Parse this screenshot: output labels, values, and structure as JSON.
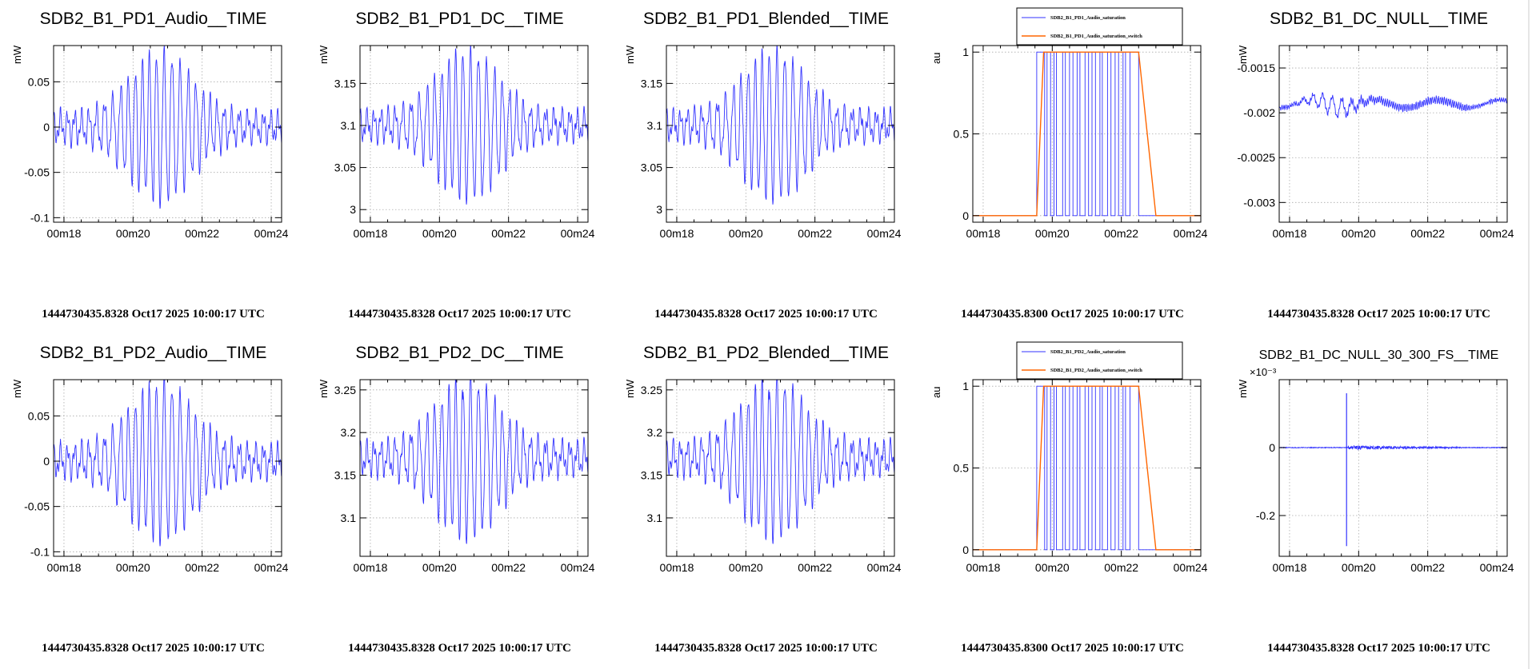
{
  "time_ticks": [
    "00m18",
    "00m20",
    "00m22",
    "00m24"
  ],
  "colors": {
    "trace": "#3333ff",
    "switch": "#ff6600",
    "grid": "#aaaaaa",
    "frame": "#000000"
  },
  "panels": [
    {
      "title": "SDB2_B1_PD1_Audio__TIME",
      "footer": "1444730435.8328 Oct17 2025 10:00:17 UTC",
      "chart_data": {
        "type": "line",
        "kind": "osc",
        "ylabel": "mW",
        "yrange": [
          -0.105,
          0.09
        ],
        "yticks": [
          {
            "v": 0.05,
            "label": "0.05"
          },
          {
            "v": 0,
            "label": "0"
          },
          {
            "v": -0.05,
            "label": "-0.05"
          },
          {
            "v": -0.1,
            "label": "-0.1"
          }
        ],
        "baseline": 0.0,
        "amp": 0.07,
        "seed": 3,
        "x_window_s": [
          17.7,
          24.3
        ]
      }
    },
    {
      "title": "SDB2_B1_PD1_DC__TIME",
      "footer": "1444730435.8328 Oct17 2025 10:00:17 UTC",
      "chart_data": {
        "type": "line",
        "kind": "osc",
        "ylabel": "mW",
        "yrange": [
          2.985,
          3.195
        ],
        "yticks": [
          {
            "v": 3.15,
            "label": "3.15"
          },
          {
            "v": 3.1,
            "label": "3.1"
          },
          {
            "v": 3.05,
            "label": "3.05"
          },
          {
            "v": 3,
            "label": "3"
          }
        ],
        "baseline": 3.1,
        "amp": 0.075,
        "seed": 7,
        "x_window_s": [
          17.7,
          24.3
        ]
      }
    },
    {
      "title": "SDB2_B1_PD1_Blended__TIME",
      "footer": "1444730435.8328 Oct17 2025 10:00:17 UTC",
      "chart_data": {
        "type": "line",
        "kind": "osc",
        "ylabel": "mW",
        "yrange": [
          2.985,
          3.195
        ],
        "yticks": [
          {
            "v": 3.15,
            "label": "3.15"
          },
          {
            "v": 3.1,
            "label": "3.1"
          },
          {
            "v": 3.05,
            "label": "3.05"
          },
          {
            "v": 3,
            "label": "3"
          }
        ],
        "baseline": 3.1,
        "amp": 0.075,
        "seed": 7,
        "x_window_s": [
          17.7,
          24.3
        ]
      }
    },
    {
      "title": "",
      "footer": "1444730435.8300 Oct17 2025 10:00:17 UTC",
      "chart_data": {
        "type": "line",
        "kind": "sat",
        "ylabel": "au",
        "yrange": [
          -0.04,
          1.04
        ],
        "yticks": [
          {
            "v": 1,
            "label": "1"
          },
          {
            "v": 0.5,
            "label": "0.5"
          },
          {
            "v": 0,
            "label": "0"
          }
        ],
        "legend": [
          "SDB2_B1_PD1_Audio_saturation",
          "SDB2_B1_PD1_Audio_saturation_switch"
        ],
        "switch_rise_s": [
          19.55,
          19.75
        ],
        "switch_fall_s": [
          22.5,
          23.0
        ],
        "x_window_s": [
          17.7,
          24.3
        ]
      }
    },
    {
      "title": "SDB2_B1_DC_NULL__TIME",
      "footer": "1444730435.8328 Oct17 2025 10:00:17 UTC",
      "chart_data": {
        "type": "line",
        "kind": "null",
        "ylabel": "mW",
        "yrange": [
          -0.00322,
          -0.00125
        ],
        "yticks": [
          {
            "v": -0.0015,
            "label": "-0.0015"
          },
          {
            "v": -0.002,
            "label": "-0.002"
          },
          {
            "v": -0.0025,
            "label": "-0.0025"
          },
          {
            "v": -0.003,
            "label": "-0.003"
          }
        ],
        "baseline": -0.0019,
        "amp": 0.0003,
        "seed": 11,
        "x_window_s": [
          17.7,
          24.3
        ]
      }
    },
    {
      "title": "SDB2_B1_PD2_Audio__TIME",
      "footer": "1444730435.8328 Oct17 2025 10:00:17 UTC",
      "chart_data": {
        "type": "line",
        "kind": "osc",
        "ylabel": "mW",
        "yrange": [
          -0.105,
          0.09
        ],
        "yticks": [
          {
            "v": 0.05,
            "label": "0.05"
          },
          {
            "v": 0,
            "label": "0"
          },
          {
            "v": -0.05,
            "label": "-0.05"
          },
          {
            "v": -0.1,
            "label": "-0.1"
          }
        ],
        "baseline": 0.0,
        "amp": 0.075,
        "seed": 5,
        "x_window_s": [
          17.7,
          24.3
        ]
      }
    },
    {
      "title": "SDB2_B1_PD2_DC__TIME",
      "footer": "1444730435.8328 Oct17 2025 10:00:17 UTC",
      "chart_data": {
        "type": "line",
        "kind": "osc",
        "ylabel": "mW",
        "yrange": [
          3.055,
          3.262
        ],
        "yticks": [
          {
            "v": 3.25,
            "label": "3.25"
          },
          {
            "v": 3.2,
            "label": "3.2"
          },
          {
            "v": 3.15,
            "label": "3.15"
          },
          {
            "v": 3.1,
            "label": "3.1"
          }
        ],
        "baseline": 3.17,
        "amp": 0.08,
        "seed": 9,
        "x_window_s": [
          17.7,
          24.3
        ]
      }
    },
    {
      "title": "SDB2_B1_PD2_Blended__TIME",
      "footer": "1444730435.8328 Oct17 2025 10:00:17 UTC",
      "chart_data": {
        "type": "line",
        "kind": "osc",
        "ylabel": "mW",
        "yrange": [
          3.055,
          3.262
        ],
        "yticks": [
          {
            "v": 3.25,
            "label": "3.25"
          },
          {
            "v": 3.2,
            "label": "3.2"
          },
          {
            "v": 3.15,
            "label": "3.15"
          },
          {
            "v": 3.1,
            "label": "3.1"
          }
        ],
        "baseline": 3.17,
        "amp": 0.08,
        "seed": 9,
        "x_window_s": [
          17.7,
          24.3
        ]
      }
    },
    {
      "title": "",
      "footer": "1444730435.8300 Oct17 2025 10:00:17 UTC",
      "chart_data": {
        "type": "line",
        "kind": "sat",
        "ylabel": "au",
        "yrange": [
          -0.04,
          1.04
        ],
        "yticks": [
          {
            "v": 1,
            "label": "1"
          },
          {
            "v": 0.5,
            "label": "0.5"
          },
          {
            "v": 0,
            "label": "0"
          }
        ],
        "legend": [
          "SDB2_B1_PD2_Audio_saturation",
          "SDB2_B1_PD2_Audio_saturation_switch"
        ],
        "switch_rise_s": [
          19.55,
          19.75
        ],
        "switch_fall_s": [
          22.5,
          23.0
        ],
        "x_window_s": [
          17.7,
          24.3
        ]
      }
    },
    {
      "title": "SDB2_B1_DC_NULL_30_300_FS__TIME",
      "footer": "1444730435.8328 Oct17 2025 10:00:17 UTC",
      "chart_data": {
        "type": "line",
        "kind": "spike",
        "ylabel": "mW",
        "exponent": "×10⁻³",
        "yrange": [
          -0.32,
          0.2
        ],
        "yticks": [
          {
            "v": 0,
            "label": "0"
          },
          {
            "v": -0.2,
            "label": "-0.2"
          }
        ],
        "baseline": 0.0,
        "spike_s": 19.65,
        "spike_top": 0.16,
        "spike_bottom": -0.29,
        "x_window_s": [
          17.7,
          24.3
        ]
      }
    }
  ]
}
